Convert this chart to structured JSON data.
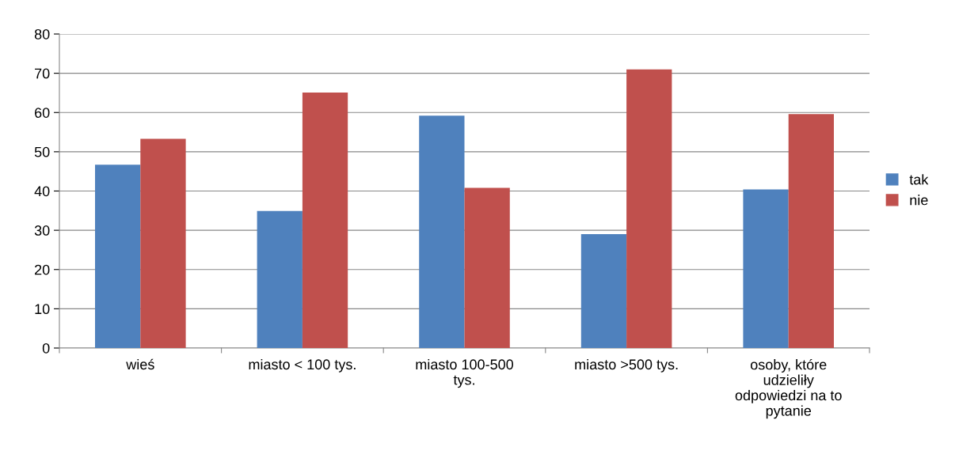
{
  "chart_data": {
    "type": "bar",
    "categories": [
      "wieś",
      "miasto < 100 tys.",
      "miasto 100-500 tys.",
      "miasto >500 tys.",
      "osoby, które udzieliły odpowiedzi na to pytanie"
    ],
    "series": [
      {
        "name": "tak",
        "color": "#4f81bd",
        "values": [
          46.7,
          34.9,
          59.2,
          29.0,
          40.4
        ]
      },
      {
        "name": "nie",
        "color": "#c0504d",
        "values": [
          53.3,
          65.1,
          40.8,
          71.0,
          59.6
        ]
      }
    ],
    "ylim": [
      0,
      80
    ],
    "yticks": [
      0,
      10,
      20,
      30,
      40,
      50,
      60,
      70,
      80
    ],
    "grid": "y",
    "legend": "right"
  }
}
